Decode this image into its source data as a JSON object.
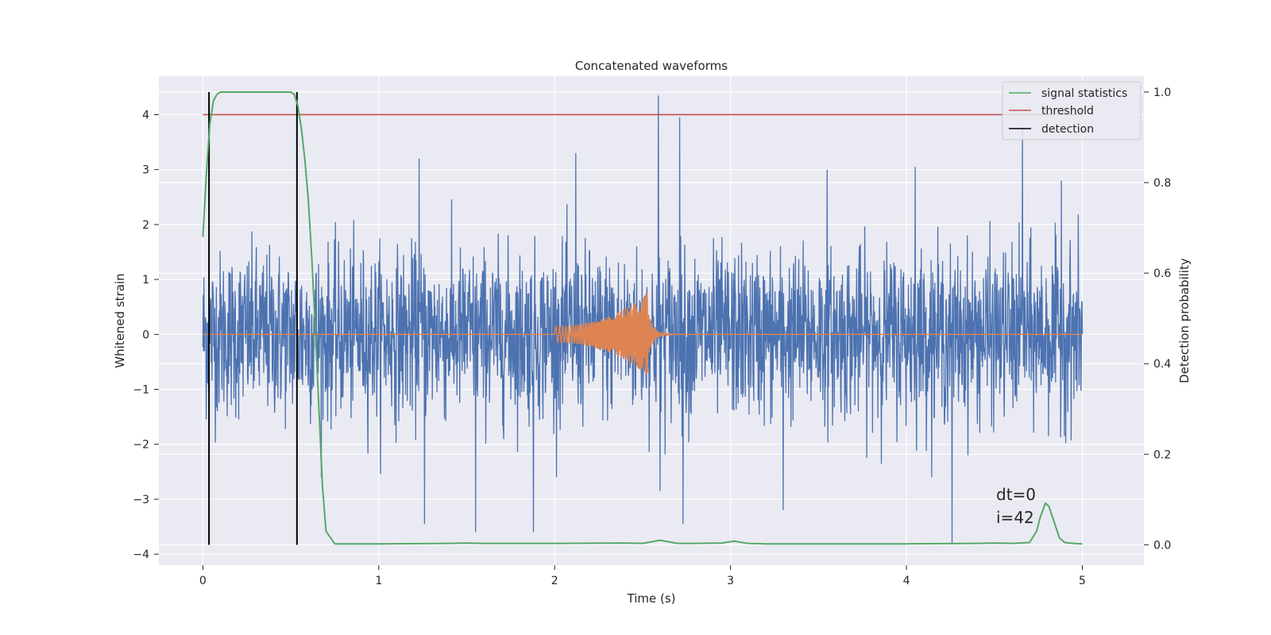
{
  "chart_data": {
    "type": "line",
    "title": "Concatenated waveforms",
    "xlabel": "Time (s)",
    "ylabel_left": "Whitened strain",
    "ylabel_right": "Detection probability",
    "xlim": [
      -0.25,
      5.35
    ],
    "ylim_left": [
      -4.2,
      4.7
    ],
    "ylim_right": [
      -0.045,
      1.035
    ],
    "x_ticks": [
      0,
      1,
      2,
      3,
      4,
      5
    ],
    "x_tick_labels": [
      "0",
      "1",
      "2",
      "3",
      "4",
      "5"
    ],
    "y_left_ticks": [
      -4,
      -3,
      -2,
      -1,
      0,
      1,
      2,
      3,
      4
    ],
    "y_left_tick_labels": [
      "−4",
      "−3",
      "−2",
      "−1",
      "0",
      "1",
      "2",
      "3",
      "4"
    ],
    "y_right_ticks": [
      0.0,
      0.2,
      0.4,
      0.6,
      0.8,
      1.0
    ],
    "y_right_tick_labels": [
      "0.0",
      "0.2",
      "0.4",
      "0.6",
      "0.8",
      "1.0"
    ],
    "grid": true,
    "legend": {
      "placement": "top-right",
      "entries": [
        {
          "label": "signal statistics",
          "color": "#55a868"
        },
        {
          "label": "threshold",
          "color": "#c44e52"
        },
        {
          "label": "detection",
          "color": "#000000"
        }
      ]
    },
    "series": [
      {
        "kind": "noise",
        "axis": "left",
        "color": "#4c72b0",
        "x_range": [
          0,
          5
        ],
        "approx_std": 0.75,
        "spikes": [
          [
            1.23,
            3.2
          ],
          [
            2.12,
            3.3
          ],
          [
            2.59,
            4.35
          ],
          [
            2.71,
            3.95
          ],
          [
            3.55,
            3.0
          ],
          [
            4.05,
            3.05
          ],
          [
            4.66,
            3.75
          ],
          [
            4.88,
            2.8
          ],
          [
            1.26,
            -3.45
          ],
          [
            1.55,
            -3.6
          ],
          [
            1.88,
            -3.6
          ],
          [
            2.6,
            -2.85
          ],
          [
            2.73,
            -3.45
          ],
          [
            3.3,
            -3.2
          ],
          [
            4.26,
            -3.8
          ]
        ]
      },
      {
        "kind": "chirp",
        "axis": "left",
        "color": "#dd8452",
        "x_range": [
          0,
          5
        ],
        "chirp_start": 2.0,
        "merger": 2.53,
        "ringdown_end": 2.95,
        "amp_start": 0.15,
        "amp_peak": 0.75,
        "amp_min": -0.7
      },
      {
        "name": "signal statistics",
        "axis": "right",
        "color": "#55a868",
        "x": [
          0.0,
          0.02,
          0.04,
          0.06,
          0.08,
          0.1,
          0.5,
          0.52,
          0.54,
          0.56,
          0.58,
          0.6,
          0.62,
          0.64,
          0.66,
          0.68,
          0.7,
          0.75,
          1.0,
          1.4,
          1.5,
          1.6,
          2.0,
          2.4,
          2.5,
          2.6,
          2.7,
          2.8,
          2.95,
          3.02,
          3.1,
          3.2,
          4.0,
          4.4,
          4.5,
          4.6,
          4.7,
          4.74,
          4.76,
          4.79,
          4.81,
          4.84,
          4.87,
          4.9,
          4.95,
          5.0
        ],
        "y": [
          0.68,
          0.82,
          0.93,
          0.98,
          0.995,
          1.0,
          1.0,
          0.995,
          0.97,
          0.92,
          0.85,
          0.76,
          0.63,
          0.47,
          0.3,
          0.13,
          0.03,
          0.002,
          0.002,
          0.003,
          0.004,
          0.003,
          0.003,
          0.004,
          0.003,
          0.01,
          0.003,
          0.003,
          0.004,
          0.008,
          0.003,
          0.002,
          0.002,
          0.003,
          0.004,
          0.003,
          0.005,
          0.03,
          0.06,
          0.092,
          0.085,
          0.05,
          0.015,
          0.005,
          0.003,
          0.002
        ]
      },
      {
        "name": "threshold",
        "axis": "right",
        "color": "#c44e52",
        "x": [
          0,
          5
        ],
        "y": [
          0.95,
          0.95
        ]
      },
      {
        "name": "detection",
        "axis": "right",
        "color": "#000000",
        "x_positions": [
          0.035,
          0.535
        ],
        "y_range": [
          0.0,
          1.0
        ]
      }
    ],
    "annotations": [
      "dt=0",
      "i=42"
    ]
  }
}
